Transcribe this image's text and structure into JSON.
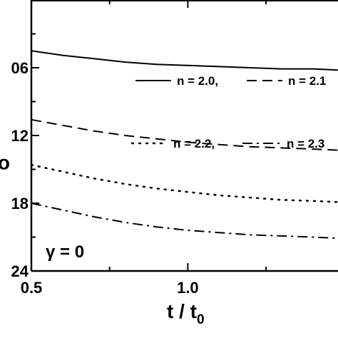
{
  "chart_data": {
    "type": "line",
    "xlabel": "t / t",
    "xlabel_sub": "0",
    "ylabel": "",
    "xlim": [
      0.5,
      1.48
    ],
    "ylim": [
      -0.024,
      0.0
    ],
    "x_ticks": [
      {
        "value": 0.5,
        "label": "0.5"
      },
      {
        "value": 1.0,
        "label": "1.0"
      }
    ],
    "x_minor_ticks": [
      0.75,
      1.25
    ],
    "y_ticks": [
      {
        "value": -0.006,
        "label": "06"
      },
      {
        "value": -0.012,
        "label": "12"
      },
      {
        "value": -0.018,
        "label": "18"
      },
      {
        "value": -0.024,
        "label": "24"
      }
    ],
    "y_minor_ticks": [
      -0.003,
      -0.009,
      -0.015,
      -0.021
    ],
    "y_extra_label": {
      "value": -0.0145,
      "label": "o"
    },
    "annotation": "γ = 0",
    "legend": [
      {
        "series": 0,
        "text": "n = 2.0,"
      },
      {
        "series": 1,
        "text": "n = 2.1"
      },
      {
        "series": 2,
        "text": "n = 2.2,"
      },
      {
        "series": 3,
        "text": "n = 2.3"
      }
    ],
    "series": [
      {
        "name": "n = 2.0",
        "style": "solid",
        "x": [
          0.5,
          0.6,
          0.7,
          0.8,
          0.9,
          1.0,
          1.1,
          1.2,
          1.3,
          1.4,
          1.48
        ],
        "y": [
          -0.0045,
          -0.0049,
          -0.0052,
          -0.0055,
          -0.0057,
          -0.0058,
          -0.0059,
          -0.006,
          -0.0061,
          -0.0061,
          -0.0062
        ]
      },
      {
        "name": "n = 2.1",
        "style": "dashed",
        "x": [
          0.5,
          0.6,
          0.7,
          0.8,
          0.9,
          1.0,
          1.1,
          1.2,
          1.3,
          1.4,
          1.48
        ],
        "y": [
          -0.0106,
          -0.0111,
          -0.0116,
          -0.012,
          -0.0123,
          -0.0126,
          -0.0128,
          -0.013,
          -0.0131,
          -0.0132,
          -0.0133
        ]
      },
      {
        "name": "n = 2.2",
        "style": "dotted",
        "x": [
          0.5,
          0.6,
          0.7,
          0.8,
          0.9,
          1.0,
          1.1,
          1.2,
          1.3,
          1.4,
          1.48
        ],
        "y": [
          -0.0146,
          -0.0152,
          -0.0158,
          -0.0163,
          -0.0167,
          -0.017,
          -0.0173,
          -0.0175,
          -0.0177,
          -0.0178,
          -0.0179
        ]
      },
      {
        "name": "n = 2.3",
        "style": "dashdot",
        "x": [
          0.5,
          0.6,
          0.7,
          0.8,
          0.9,
          1.0,
          1.1,
          1.2,
          1.3,
          1.4,
          1.48
        ],
        "y": [
          -0.018,
          -0.0186,
          -0.0192,
          -0.0197,
          -0.0201,
          -0.0204,
          -0.0206,
          -0.0208,
          -0.0209,
          -0.021,
          -0.0211
        ]
      }
    ]
  }
}
